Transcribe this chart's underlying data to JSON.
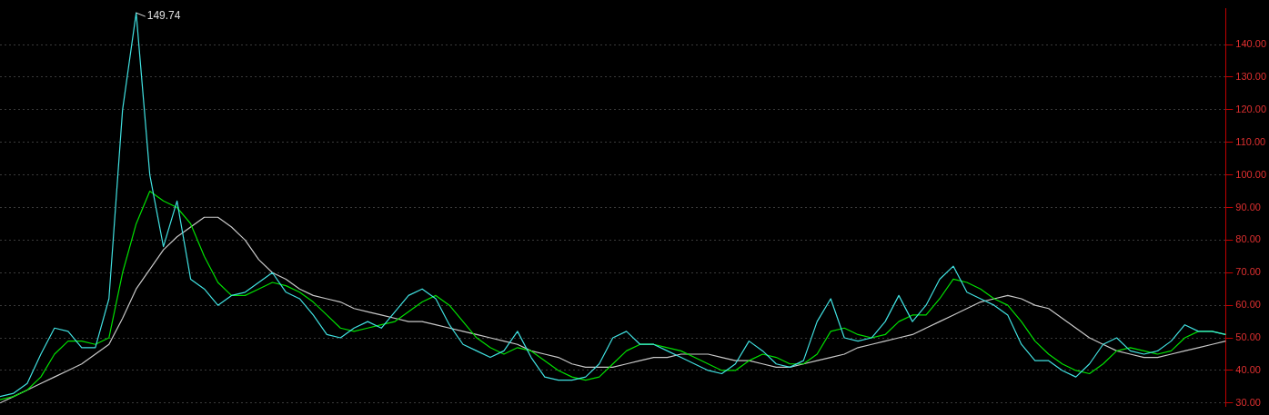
{
  "chart_data": {
    "type": "line",
    "categories": [
      null,
      null,
      null,
      null,
      null,
      null,
      null,
      null,
      null,
      null,
      null,
      null,
      null,
      null,
      null,
      null,
      null,
      null,
      null,
      null,
      null,
      null,
      null,
      null,
      null,
      null,
      null,
      null,
      null,
      null,
      null,
      null,
      null,
      null,
      null,
      null,
      null,
      null,
      null,
      null,
      null,
      null,
      null,
      null,
      null,
      null,
      null,
      null,
      null,
      null,
      null,
      null,
      null,
      null,
      null,
      null,
      null,
      null,
      null,
      null,
      null,
      null,
      null,
      null,
      null,
      null,
      null,
      null,
      null,
      null,
      null,
      null,
      null,
      null,
      null,
      null,
      null,
      null,
      null,
      null,
      null,
      null,
      null,
      null,
      null,
      null,
      null,
      null,
      null,
      null,
      null
    ],
    "series": [
      {
        "color": "#40e0e0",
        "values": [
          32,
          33,
          36,
          45,
          53,
          52,
          47,
          47,
          62,
          120,
          149.74,
          100,
          78,
          92,
          68,
          65,
          60,
          63,
          64,
          67,
          70,
          64,
          62,
          57,
          51,
          50,
          53,
          55,
          53,
          58,
          63,
          65,
          62,
          54,
          48,
          46,
          44,
          46,
          52,
          44,
          38,
          37,
          37,
          38,
          42,
          50,
          52,
          48,
          48,
          46,
          44,
          42,
          40,
          39,
          42,
          49,
          46,
          42,
          41,
          43,
          55,
          62,
          50,
          49,
          50,
          55,
          63,
          55,
          60,
          68,
          72,
          64,
          62,
          60,
          57,
          48,
          43,
          43,
          40,
          38,
          42,
          48,
          50,
          46,
          45,
          46,
          49,
          54,
          52,
          52,
          51
        ]
      },
      {
        "color": "#00e000",
        "values": [
          31,
          32,
          34,
          38,
          45,
          49,
          49,
          48,
          50,
          70,
          85,
          95,
          92,
          90,
          85,
          75,
          67,
          63,
          63,
          65,
          67,
          66,
          64,
          61,
          57,
          53,
          52,
          53,
          54,
          55,
          58,
          61,
          63,
          60,
          55,
          50,
          47,
          45,
          47,
          46,
          43,
          40,
          38,
          37,
          38,
          42,
          46,
          48,
          48,
          47,
          46,
          44,
          42,
          40,
          40,
          43,
          45,
          44,
          42,
          42,
          45,
          52,
          53,
          51,
          50,
          51,
          55,
          57,
          57,
          62,
          68,
          67,
          65,
          62,
          60,
          55,
          49,
          45,
          42,
          40,
          39,
          42,
          46,
          47,
          46,
          45,
          46,
          50,
          52,
          52,
          51
        ]
      },
      {
        "color": "#c8c8c8",
        "values": [
          30,
          32,
          34,
          36,
          38,
          40,
          42,
          45,
          48,
          56,
          65,
          71,
          77,
          81,
          84,
          87,
          87,
          84,
          80,
          74,
          70,
          68,
          65,
          63,
          62,
          61,
          59,
          58,
          57,
          56,
          55,
          55,
          54,
          53,
          52,
          51,
          50,
          49,
          48,
          46,
          45,
          44,
          42,
          41,
          41,
          41,
          42,
          43,
          44,
          44,
          45,
          45,
          45,
          44,
          43,
          43,
          42,
          41,
          41,
          42,
          43,
          44,
          45,
          47,
          48,
          49,
          50,
          51,
          53,
          55,
          57,
          59,
          61,
          62,
          63,
          62,
          60,
          59,
          56,
          53,
          50,
          48,
          46,
          45,
          44,
          44,
          45,
          46,
          47,
          48,
          49
        ]
      }
    ],
    "ylim": [
      29,
      151
    ],
    "yticks": [
      {
        "value": 30,
        "label": "30.00"
      },
      {
        "value": 40,
        "label": "40.00"
      },
      {
        "value": 50,
        "label": "50.00"
      },
      {
        "value": 60,
        "label": "60.00"
      },
      {
        "value": 70,
        "label": "70.00"
      },
      {
        "value": 80,
        "label": "80.00"
      },
      {
        "value": 90,
        "label": "90.00"
      },
      {
        "value": 100,
        "label": "100.00"
      },
      {
        "value": 110,
        "label": "110.00"
      },
      {
        "value": 120,
        "label": "120.00"
      },
      {
        "value": 130,
        "label": "130.00"
      },
      {
        "value": 140,
        "label": "140.00"
      }
    ],
    "grid": "y",
    "tick_labels": "y",
    "legend": false,
    "annotations": [
      "149.74"
    ]
  }
}
